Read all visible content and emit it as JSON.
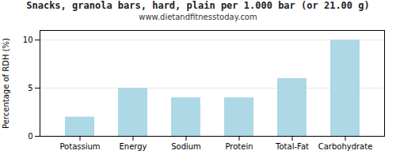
{
  "chart_data": {
    "type": "bar",
    "title": "Snacks, granola bars, hard, plain per 1.000 bar (or 21.00 g)",
    "subtitle": "www.dietandfitnesstoday.com",
    "categories": [
      "Potassium",
      "Energy",
      "Sodium",
      "Protein",
      "Total-Fat",
      "Carbohydrate"
    ],
    "values": [
      2,
      5,
      4,
      4,
      6,
      10
    ],
    "color": "#add8e6",
    "ylabel": "Percentage of RDH (%)",
    "ylim": [
      0,
      11
    ],
    "yticks": [
      0,
      5,
      10
    ],
    "grid": true
  }
}
